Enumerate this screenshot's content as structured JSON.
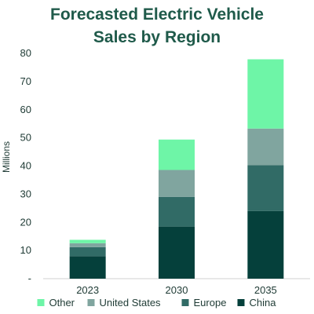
{
  "chart_data": {
    "type": "bar",
    "stacked": true,
    "title_lines": [
      "Forecasted Electric Vehicle",
      "Sales by Region"
    ],
    "ylabel": "Millions",
    "xlabel": "",
    "categories": [
      "2023",
      "2030",
      "2035"
    ],
    "ylim": [
      0,
      80
    ],
    "yticks": [
      0,
      10,
      20,
      30,
      40,
      50,
      60,
      70,
      80
    ],
    "ytick_labels": [
      "-",
      "10",
      "20",
      "30",
      "40",
      "50",
      "60",
      "70",
      "80"
    ],
    "grid": false,
    "legend_position": "bottom",
    "series": [
      {
        "name": "China",
        "color": "#05403b",
        "values": [
          8,
          18.5,
          24
        ]
      },
      {
        "name": "Europe",
        "color": "#316b66",
        "values": [
          3.2,
          10.5,
          16.3
        ]
      },
      {
        "name": "United States",
        "color": "#80a59f",
        "values": [
          1.4,
          9.6,
          13
        ]
      },
      {
        "name": "Other",
        "color": "#6ef5a7",
        "values": [
          1.2,
          10.8,
          24.6
        ]
      }
    ],
    "legend_order": [
      "Other",
      "United States",
      "Europe",
      "China"
    ]
  }
}
